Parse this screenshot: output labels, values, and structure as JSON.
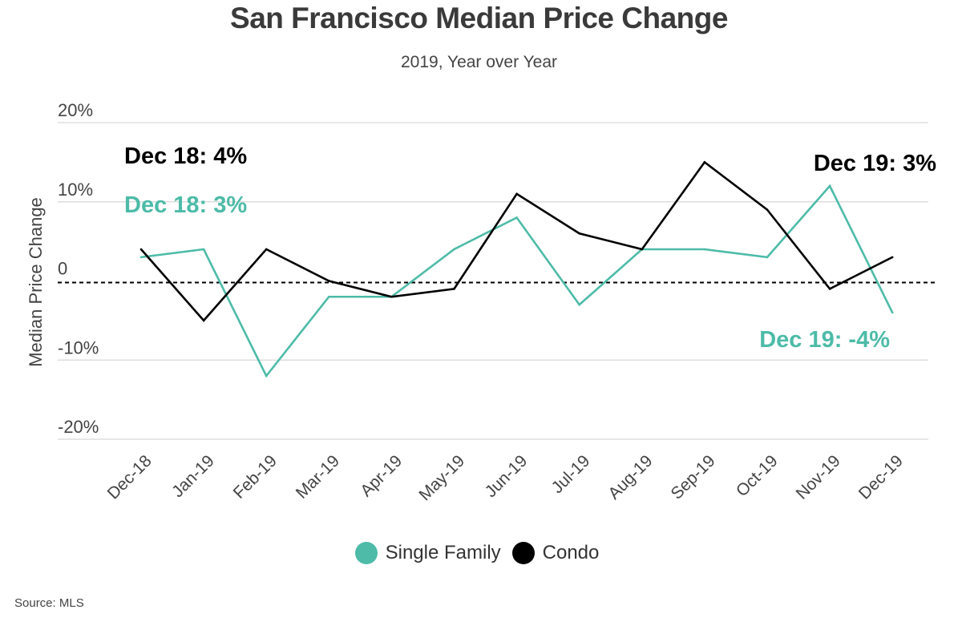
{
  "title": "San Francisco Median Price Change",
  "subtitle": "2019, Year over Year",
  "source": "Source:  MLS",
  "colors": {
    "single_family": "#4dbba8",
    "condo": "#000000",
    "grid": "#dddddd",
    "axis_text": "#444444"
  },
  "chart_data": {
    "type": "line",
    "ylabel": "Median Price Change",
    "xlabel": "",
    "ylim": [
      -20,
      20
    ],
    "y_ticks": [
      {
        "value": 20,
        "label": "20%"
      },
      {
        "value": 10,
        "label": "10%"
      },
      {
        "value": 0,
        "label": "0"
      },
      {
        "value": -10,
        "label": "-10%"
      },
      {
        "value": -20,
        "label": "-20%"
      }
    ],
    "zero_line": "dashed",
    "grid": true,
    "legend_position": "bottom",
    "categories": [
      "Dec-18",
      "Jan-19",
      "Feb-19",
      "Mar-19",
      "Apr-19",
      "May-19",
      "Jun-19",
      "Jul-19",
      "Aug-19",
      "Sep-19",
      "Oct-19",
      "Nov-19",
      "Dec-19"
    ],
    "series": [
      {
        "name": "Single Family",
        "color": "#4dbba8",
        "values": [
          3,
          4,
          -12,
          -2,
          -2,
          4,
          8,
          -3,
          4,
          4,
          3,
          12,
          -4
        ]
      },
      {
        "name": "Condo",
        "color": "#000000",
        "values": [
          4,
          -5,
          4,
          0,
          -2,
          -1,
          11,
          6,
          4,
          15,
          9,
          -1,
          3
        ]
      }
    ],
    "annotations": [
      {
        "text": "Dec 18: 4%",
        "series": "Condo",
        "position": "left"
      },
      {
        "text": "Dec 18: 3%",
        "series": "Single Family",
        "position": "left"
      },
      {
        "text": "Dec 19: 3%",
        "series": "Condo",
        "position": "right"
      },
      {
        "text": "Dec 19: -4%",
        "series": "Single Family",
        "position": "right"
      }
    ]
  }
}
